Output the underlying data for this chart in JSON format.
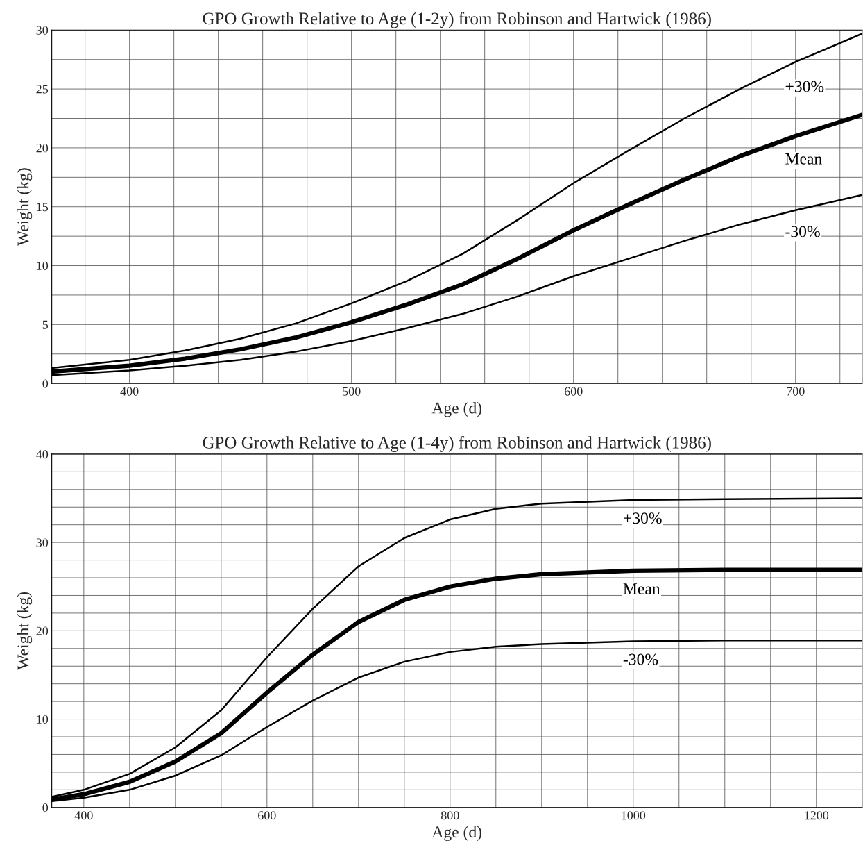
{
  "chart_data": [
    {
      "type": "line",
      "title": "GPO Growth Relative to Age (1-2y) from Robinson and Hartwick (1986)",
      "xlabel": "Age (d)",
      "ylabel": "Weight (kg)",
      "xlim": [
        365,
        730
      ],
      "ylim": [
        0,
        30
      ],
      "xticks": [
        {
          "value": 380,
          "label": null
        },
        400,
        {
          "value": 420,
          "label": null
        },
        {
          "value": 440,
          "label": null
        },
        {
          "value": 460,
          "label": null
        },
        {
          "value": 480,
          "label": null
        },
        500,
        {
          "value": 520,
          "label": null
        },
        {
          "value": 540,
          "label": null
        },
        {
          "value": 560,
          "label": null
        },
        {
          "value": 580,
          "label": null
        },
        600,
        {
          "value": 620,
          "label": null
        },
        {
          "value": 640,
          "label": null
        },
        {
          "value": 660,
          "label": null
        },
        {
          "value": 680,
          "label": null
        },
        700,
        {
          "value": 720,
          "label": null
        }
      ],
      "yticks": [
        0,
        {
          "value": 2.5,
          "label": null
        },
        5,
        {
          "value": 7.5,
          "label": null
        },
        10,
        {
          "value": 12.5,
          "label": null
        },
        15,
        {
          "value": 17.5,
          "label": null
        },
        20,
        {
          "value": 22.5,
          "label": null
        },
        25,
        {
          "value": 27.5,
          "label": null
        },
        30
      ],
      "grid": true,
      "legend": false,
      "marker": "none",
      "line_style": "solid",
      "x": [
        365,
        400,
        425,
        450,
        475,
        500,
        525,
        550,
        575,
        600,
        625,
        650,
        675,
        700,
        730
      ],
      "series": [
        {
          "name": "+30%",
          "color": "#000000",
          "values": [
            1.3,
            2.0,
            2.8,
            3.8,
            5.1,
            6.8,
            8.7,
            11.0,
            13.9,
            17.0,
            19.8,
            22.5,
            25.0,
            27.3,
            29.7
          ]
        },
        {
          "name": "Mean",
          "color": "#000000",
          "values": [
            1.0,
            1.5,
            2.1,
            2.9,
            3.9,
            5.2,
            6.7,
            8.4,
            10.6,
            13.0,
            15.2,
            17.3,
            19.3,
            21.0,
            22.8
          ]
        },
        {
          "name": "-30%",
          "color": "#000000",
          "values": [
            0.7,
            1.1,
            1.5,
            2.0,
            2.7,
            3.6,
            4.7,
            5.9,
            7.4,
            9.1,
            10.6,
            12.1,
            13.5,
            14.7,
            16.0
          ]
        }
      ]
    },
    {
      "type": "line",
      "title": "GPO Growth Relative to Age (1-4y) from Robinson and Hartwick (1986)",
      "xlabel": "Age (d)",
      "ylabel": "Weight (kg)",
      "xlim": [
        365,
        1250
      ],
      "ylim": [
        0,
        40
      ],
      "xticks": [
        400,
        {
          "value": 450,
          "label": null
        },
        {
          "value": 500,
          "label": null
        },
        {
          "value": 550,
          "label": null
        },
        600,
        {
          "value": 650,
          "label": null
        },
        {
          "value": 700,
          "label": null
        },
        {
          "value": 750,
          "label": null
        },
        800,
        {
          "value": 850,
          "label": null
        },
        {
          "value": 900,
          "label": null
        },
        {
          "value": 950,
          "label": null
        },
        1000,
        {
          "value": 1050,
          "label": null
        },
        {
          "value": 1100,
          "label": null
        },
        {
          "value": 1150,
          "label": null
        },
        1200
      ],
      "yticks": [
        0,
        {
          "value": 2,
          "label": null
        },
        {
          "value": 4,
          "label": null
        },
        {
          "value": 6,
          "label": null
        },
        {
          "value": 8,
          "label": null
        },
        10,
        {
          "value": 12,
          "label": null
        },
        {
          "value": 14,
          "label": null
        },
        {
          "value": 16,
          "label": null
        },
        {
          "value": 18,
          "label": null
        },
        20,
        {
          "value": 22,
          "label": null
        },
        {
          "value": 24,
          "label": null
        },
        {
          "value": 26,
          "label": null
        },
        {
          "value": 28,
          "label": null
        },
        30,
        {
          "value": 32,
          "label": null
        },
        {
          "value": 34,
          "label": null
        },
        {
          "value": 36,
          "label": null
        },
        {
          "value": 38,
          "label": null
        },
        40
      ],
      "grid": true,
      "legend": false,
      "marker": "none",
      "line_style": "solid",
      "x": [
        365,
        400,
        450,
        500,
        550,
        600,
        650,
        700,
        750,
        800,
        850,
        900,
        1000,
        1100,
        1250
      ],
      "series": [
        {
          "name": "+30%",
          "color": "#000000",
          "values": [
            1.2,
            2.0,
            3.8,
            6.8,
            11.0,
            17.0,
            22.5,
            27.3,
            30.5,
            32.6,
            33.8,
            34.4,
            34.8,
            34.9,
            35.0
          ]
        },
        {
          "name": "Mean",
          "color": "#000000",
          "values": [
            0.9,
            1.5,
            2.9,
            5.2,
            8.4,
            13.0,
            17.3,
            21.0,
            23.5,
            25.0,
            25.9,
            26.4,
            26.8,
            26.9,
            26.9
          ]
        },
        {
          "name": "-30%",
          "color": "#000000",
          "values": [
            0.7,
            1.1,
            2.0,
            3.6,
            5.9,
            9.1,
            12.1,
            14.7,
            16.5,
            17.6,
            18.2,
            18.5,
            18.8,
            18.9,
            18.9
          ]
        }
      ]
    }
  ]
}
